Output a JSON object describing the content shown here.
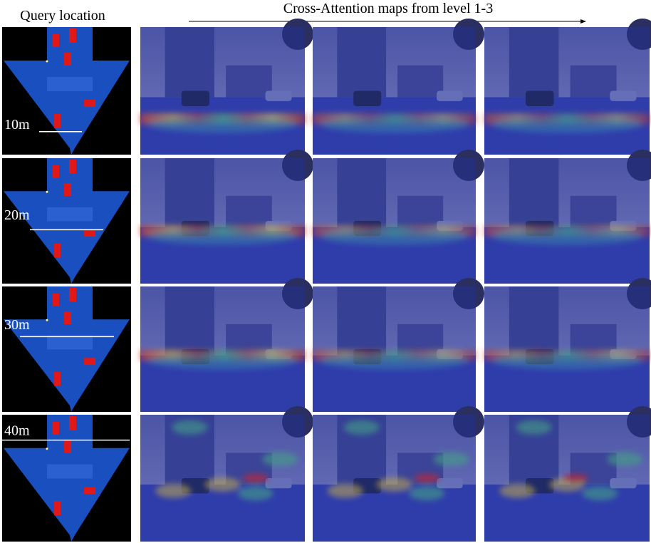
{
  "header": {
    "query_title": "Query location",
    "maps_title": "Cross-Attention maps from level 1-3"
  },
  "rows": [
    {
      "label": "10m"
    },
    {
      "label": "20m"
    },
    {
      "label": "30m"
    },
    {
      "label": "40m"
    }
  ]
}
